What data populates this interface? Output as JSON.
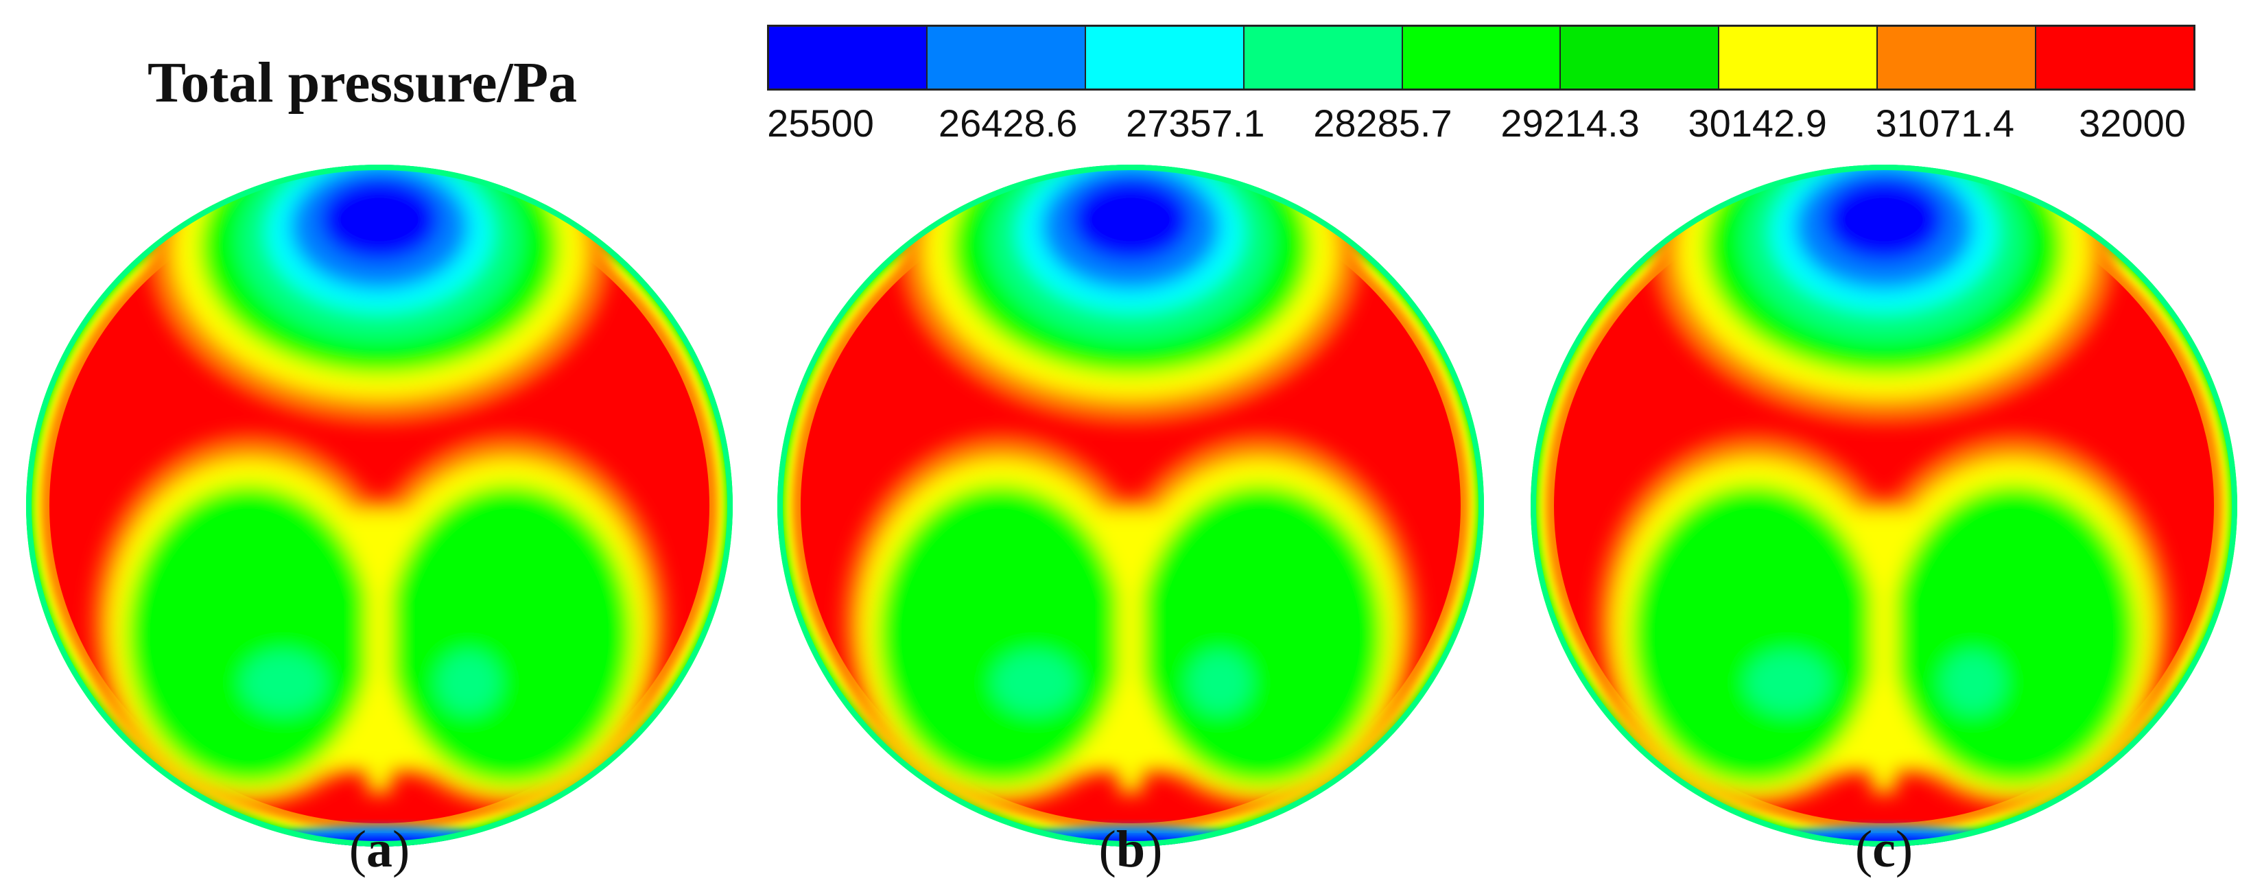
{
  "chart_data": {
    "type": "heatmap",
    "title": "Total pressure/Pa",
    "colorbar": {
      "ticks": [
        "25500",
        "26428.6",
        "27357.1",
        "28285.7",
        "29214.3",
        "30142.9",
        "31071.4",
        "32000"
      ],
      "min": 25500,
      "max": 32000,
      "colors": [
        "#0000ff",
        "#0080ff",
        "#00ffff",
        "#00ff80",
        "#00ff00",
        "#00e800",
        "#ffff00",
        "#ff8000",
        "#ff0000"
      ]
    },
    "panels": [
      {
        "label_open": "(",
        "label_letter": "a",
        "label_close": ")",
        "min_region_pa": 25500,
        "max_region_pa": 32000
      },
      {
        "label_open": "(",
        "label_letter": "b",
        "label_close": ")",
        "min_region_pa": 25500,
        "max_region_pa": 32000
      },
      {
        "label_open": "(",
        "label_letter": "c",
        "label_close": ")",
        "min_region_pa": 25500,
        "max_region_pa": 32000
      }
    ]
  }
}
